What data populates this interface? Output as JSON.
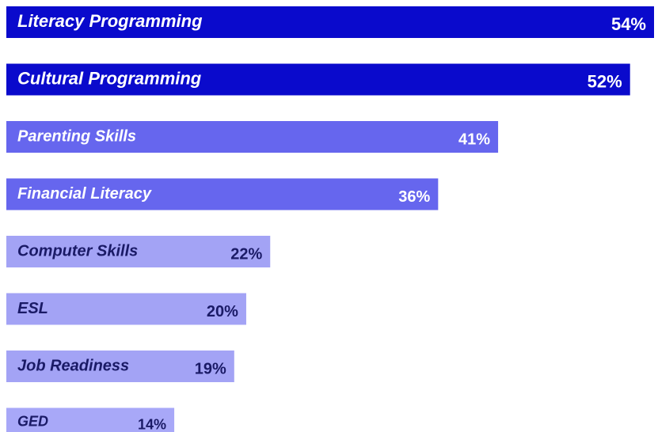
{
  "chart_data": {
    "type": "barh",
    "categories": [
      "Literacy Programming",
      "Cultural Programming",
      "Parenting Skills",
      "Financial Literacy",
      "Computer Skills",
      "ESL",
      "Job Readiness",
      "GED"
    ],
    "values": [
      54,
      52,
      41,
      36,
      22,
      20,
      19,
      14
    ],
    "value_labels": [
      "54%",
      "52%",
      "41%",
      "36%",
      "22%",
      "20%",
      "19%",
      "14%"
    ],
    "colors": [
      "#0a0acc",
      "#0a0acc",
      "#6666ee",
      "#6666ee",
      "#a3a3f5",
      "#a3a3f5",
      "#a3a3f5",
      "#a8a8f8"
    ]
  }
}
